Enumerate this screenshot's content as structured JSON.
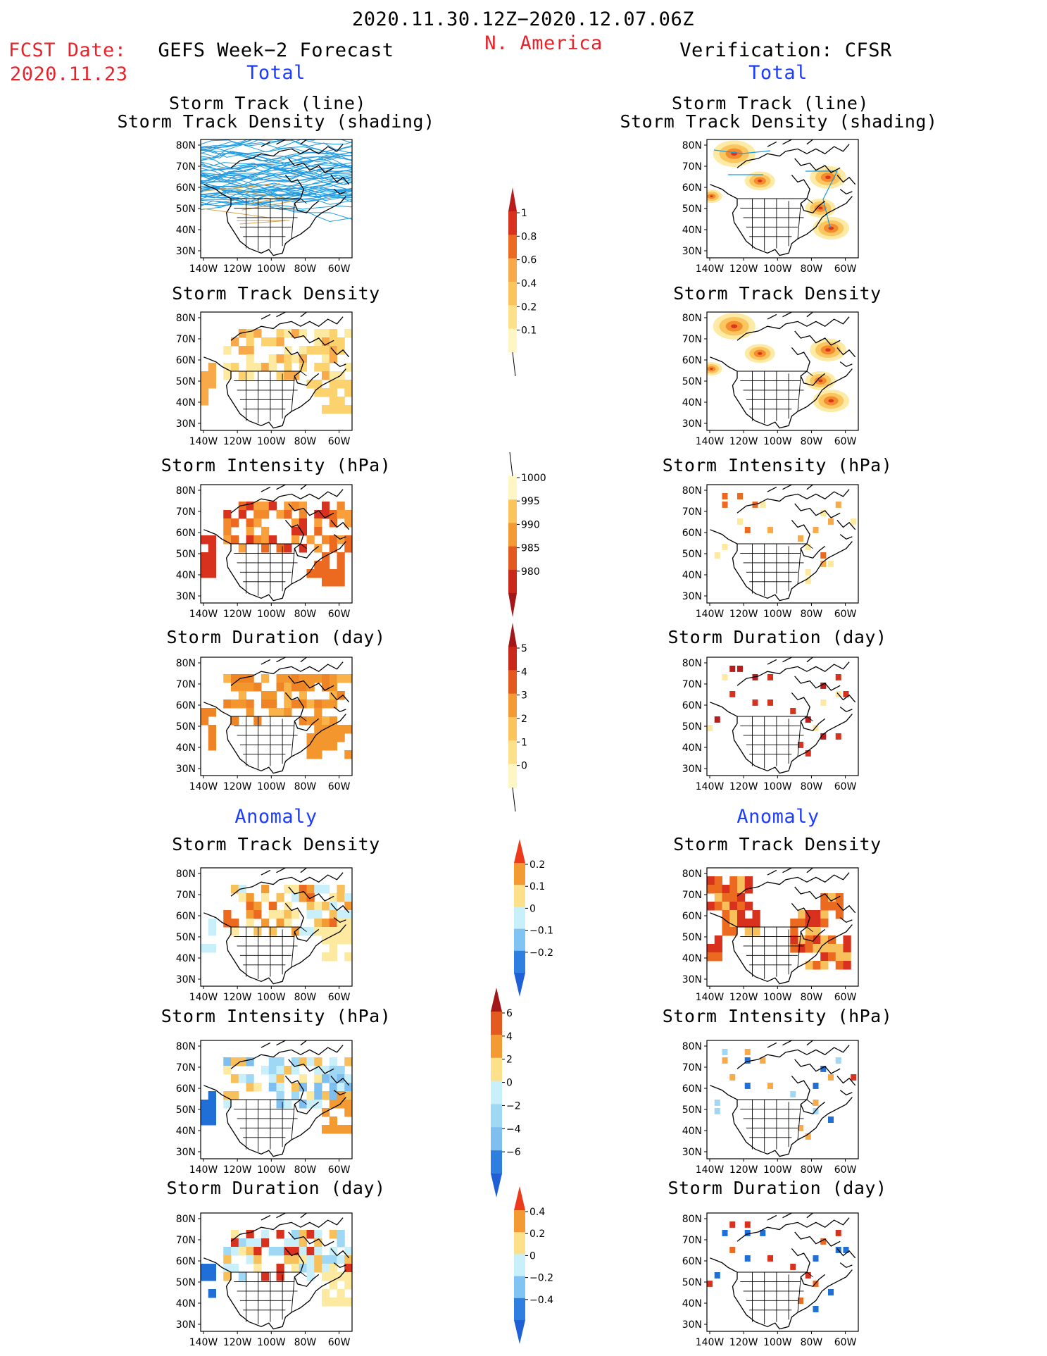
{
  "header": {
    "period": "2020.11.30.12Z−2020.12.07.06Z",
    "region": "N. America",
    "fcst_label": "FCST Date:",
    "fcst_date": "2020.11.23",
    "left_title": "GEFS Week−2 Forecast",
    "right_title": "Verification: CFSR",
    "total_label": "Total",
    "anomaly_label": "Anomaly"
  },
  "titles": {
    "track_line": "Storm Track (line)",
    "track_shade": "Storm Track Density (shading)",
    "density": "Storm Track Density",
    "intensity": "Storm Intensity (hPa)",
    "duration": "Storm Duration (day)"
  },
  "axes": {
    "lat": [
      "80N",
      "70N",
      "60N",
      "50N",
      "40N",
      "30N"
    ],
    "lon": [
      "140W",
      "120W",
      "100W",
      "80W",
      "60W"
    ]
  },
  "colorbars": {
    "density_total": [
      "1",
      "0.8",
      "0.6",
      "0.4",
      "0.2",
      "0.1"
    ],
    "intensity_total": [
      "1000",
      "995",
      "990",
      "985",
      "980"
    ],
    "duration_total": [
      "5",
      "4",
      "3",
      "2",
      "1",
      "0"
    ],
    "density_anom": [
      "0.2",
      "0.1",
      "0",
      "−0.1",
      "−0.2"
    ],
    "intensity_anom": [
      "6",
      "4",
      "2",
      "0",
      "−2",
      "−4",
      "−6"
    ],
    "duration_anom": [
      "0.4",
      "0.2",
      "0",
      "−0.2",
      "−0.4"
    ]
  },
  "colors": {
    "label_red": "#e8222a",
    "label_blue": "#1e3cff",
    "track_line": "#1f9be0"
  }
}
